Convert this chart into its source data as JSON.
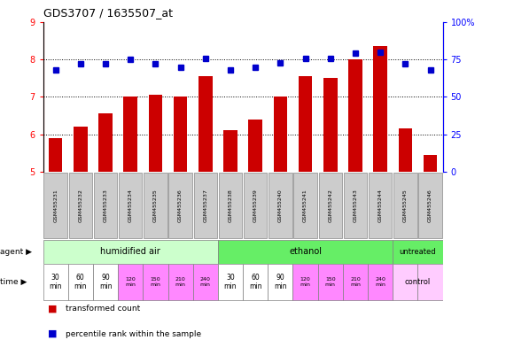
{
  "title": "GDS3707 / 1635507_at",
  "samples": [
    "GSM455231",
    "GSM455232",
    "GSM455233",
    "GSM455234",
    "GSM455235",
    "GSM455236",
    "GSM455237",
    "GSM455238",
    "GSM455239",
    "GSM455240",
    "GSM455241",
    "GSM455242",
    "GSM455243",
    "GSM455244",
    "GSM455245",
    "GSM455246"
  ],
  "bar_values": [
    5.9,
    6.2,
    6.55,
    7.0,
    7.05,
    7.0,
    7.55,
    6.1,
    6.4,
    7.0,
    7.55,
    7.5,
    8.0,
    8.35,
    6.15,
    5.45
  ],
  "dot_values": [
    68,
    72,
    72,
    75,
    72,
    70,
    76,
    68,
    70,
    73,
    76,
    76,
    79,
    80,
    72,
    68
  ],
  "ylim_left": [
    5,
    9
  ],
  "ylim_right": [
    0,
    100
  ],
  "yticks_left": [
    5,
    6,
    7,
    8,
    9
  ],
  "yticks_right": [
    0,
    25,
    50,
    75,
    100
  ],
  "bar_color": "#cc0000",
  "dot_color": "#0000cc",
  "humidified_color": "#ccffcc",
  "ethanol_color": "#66ee66",
  "untreated_color": "#66ee66",
  "time_white": "#ffffff",
  "time_pink": "#ff88ff",
  "time_lightpink": "#ffccff",
  "sample_box_color": "#cccccc",
  "background_color": "#ffffff",
  "legend_bar": "transformed count",
  "legend_dot": "percentile rank within the sample"
}
